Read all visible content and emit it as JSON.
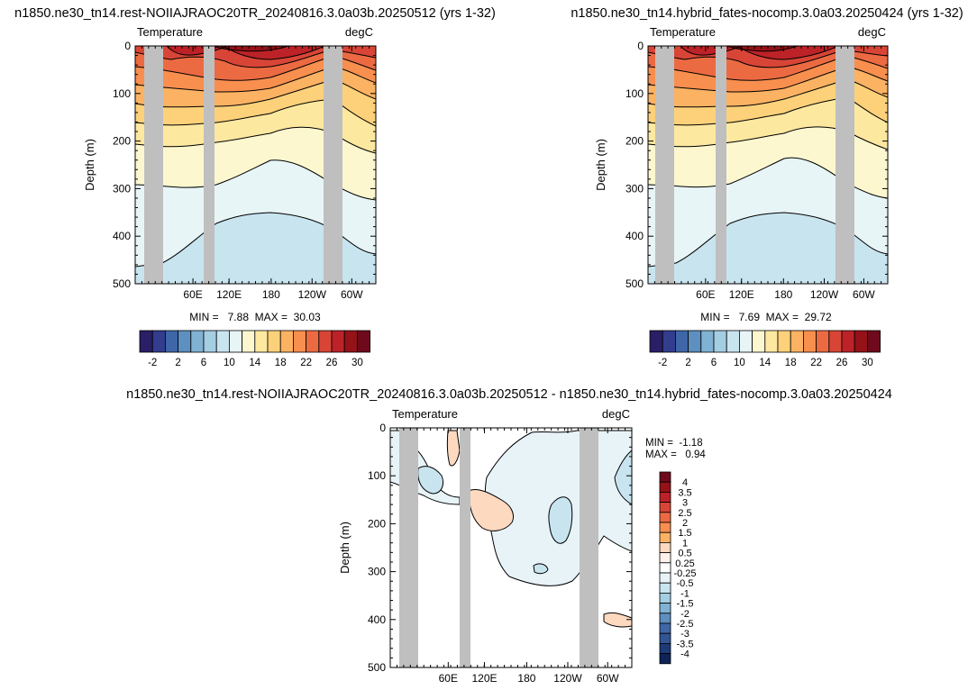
{
  "palette_diverging": [
    "#2a1e66",
    "#323d8e",
    "#3f67a8",
    "#5d8fc0",
    "#80b2d3",
    "#a4cee2",
    "#c8e4ef",
    "#e8f5f7",
    "#fcf7cf",
    "#fde8a0",
    "#fdd17a",
    "#fcb263",
    "#f88f4f",
    "#ec6a42",
    "#d84536",
    "#bc2227",
    "#951218",
    "#6e0a1c"
  ],
  "colors": {
    "land": "#bfbfbf",
    "contour": "#000000",
    "background": "#ffffff"
  },
  "chart_data": [
    {
      "id": "panel-left",
      "type": "heatmap",
      "title": "n1850.ne30_tn14.rest-NOIIAJRAOC20TR_20240816.3.0a03b.20250512 (yrs 1-32)",
      "left_label": "Temperature",
      "right_label": "degC",
      "ylabel": "Depth (m)",
      "ylim": [
        500,
        0
      ],
      "yticks": [
        "0",
        "100",
        "200",
        "300",
        "400",
        "500"
      ],
      "xticks": [
        "60E",
        "120E",
        "180",
        "120W",
        "60W"
      ],
      "stats_text": "MIN =   7.88  MAX =  30.03",
      "min": 7.88,
      "max": 30.03
    },
    {
      "id": "panel-right",
      "type": "heatmap",
      "title": "n1850.ne30_tn14.hybrid_fates-nocomp.3.0a03.20250424 (yrs 1-32)",
      "left_label": "Temperature",
      "right_label": "degC",
      "ylabel": "Depth (m)",
      "ylim": [
        500,
        0
      ],
      "yticks": [
        "0",
        "100",
        "200",
        "300",
        "400",
        "500"
      ],
      "xticks": [
        "60E",
        "120E",
        "180",
        "120W",
        "60W"
      ],
      "stats_text": "MIN =   7.69  MAX =  29.72",
      "min": 7.69,
      "max": 29.72
    },
    {
      "id": "panel-diff",
      "type": "heatmap",
      "title": "n1850.ne30_tn14.rest-NOIIAJRAOC20TR_20240816.3.0a03b.20250512 - n1850.ne30_tn14.hybrid_fates-nocomp.3.0a03.20250424",
      "left_label": "Temperature",
      "right_label": "degC",
      "ylabel": "Depth (m)",
      "ylim": [
        500,
        0
      ],
      "yticks": [
        "0",
        "100",
        "200",
        "300",
        "400",
        "500"
      ],
      "xticks": [
        "60E",
        "120E",
        "180",
        "120W",
        "60W"
      ],
      "stats_line1": "MIN =  -1.18",
      "stats_line2": "MAX =   0.94",
      "min": -1.18,
      "max": 0.94
    }
  ],
  "colorbar_top": {
    "labels": [
      "-2",
      "2",
      "6",
      "10",
      "14",
      "18",
      "22",
      "26",
      "30"
    ],
    "levels": [
      -4,
      -2,
      0,
      2,
      4,
      6,
      8,
      10,
      12,
      14,
      16,
      18,
      20,
      22,
      24,
      26,
      28,
      30
    ]
  },
  "colorbar_diff": {
    "labels": [
      "4",
      "3.5",
      "3",
      "2.5",
      "2",
      "1.5",
      "1",
      "0.5",
      "0.25",
      "-0.25",
      "-0.5",
      "-1",
      "-1.5",
      "-2",
      "-2.5",
      "-3",
      "-3.5",
      "-4"
    ],
    "colors": [
      "#6e0a1c",
      "#951218",
      "#bc2227",
      "#d84536",
      "#ec6a42",
      "#f88f4f",
      "#fcb263",
      "#fdd9c0",
      "#fff2ea",
      "#ffffff",
      "#e8f3f8",
      "#c8e4ef",
      "#a4cee2",
      "#80b2d3",
      "#5d8fc0",
      "#3f67a8",
      "#325596",
      "#1e3a78",
      "#0e2458"
    ]
  }
}
